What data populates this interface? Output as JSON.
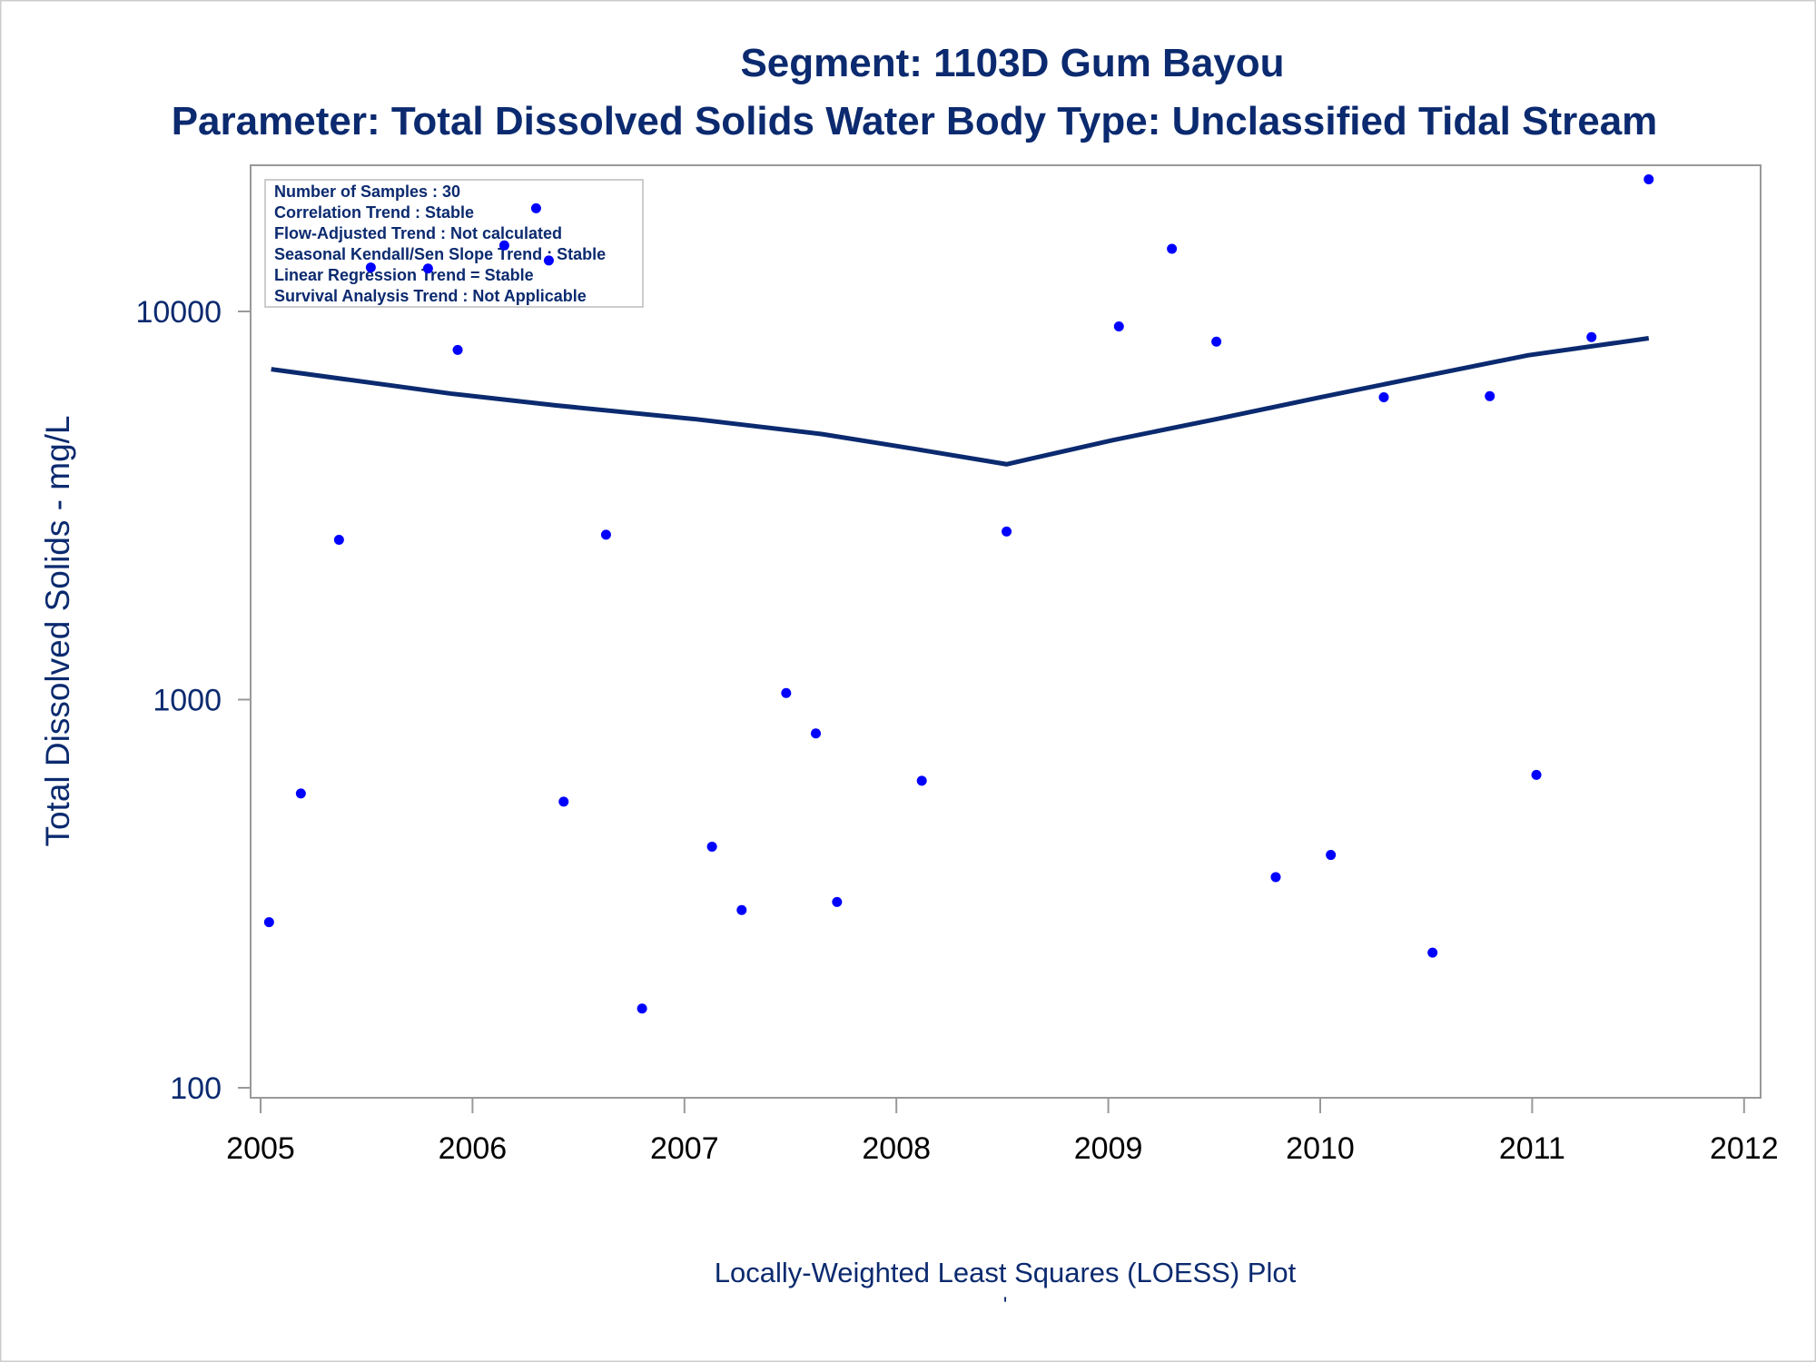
{
  "chart_data": {
    "type": "scatter",
    "title": "Segment: 1103D  Gum Bayou",
    "subtitle": "Parameter: Total Dissolved Solids   Water Body Type: Unclassified Tidal Stream",
    "xlabel": "",
    "ylabel": "Total Dissolved Solids - mg/L",
    "footnote": "Locally-Weighted Least Squares (LOESS) Plot",
    "footnote2": "'",
    "xlim": [
      2005,
      2012
    ],
    "ylim": [
      100,
      25000
    ],
    "yscale": "log",
    "x_ticks": [
      "2005",
      "2006",
      "2007",
      "2008",
      "2009",
      "2010",
      "2011",
      "2012"
    ],
    "y_ticks": [
      "100",
      "1000",
      "10000"
    ],
    "grid": false,
    "legend_placement": "top-left",
    "stats_box": [
      "Number of Samples : 30",
      "Correlation Trend : Stable",
      "Flow-Adjusted Trend : Not calculated",
      "Seasonal Kendall/Sen Slope Trend : Stable",
      "Linear Regression Trend = Stable",
      "Survival Analysis Trend : Not Applicable"
    ],
    "colors": {
      "points": "#0000ff",
      "loess": "#0b2a6f",
      "text": "#0b2a6f",
      "axis": "#999999"
    },
    "series": [
      {
        "name": "Samples",
        "type": "scatter",
        "x": [
          2005.04,
          2005.19,
          2005.37,
          2005.52,
          2005.79,
          2005.93,
          2006.15,
          2006.3,
          2006.36,
          2006.43,
          2006.63,
          2006.8,
          2007.13,
          2007.27,
          2007.48,
          2007.62,
          2007.72,
          2008.12,
          2008.52,
          2009.05,
          2009.3,
          2009.51,
          2009.79,
          2010.05,
          2010.3,
          2010.53,
          2010.8,
          2011.02,
          2011.28,
          2011.55
        ],
        "y": [
          267,
          573,
          2580,
          12980,
          12900,
          7960,
          14800,
          18440,
          13530,
          546,
          2660,
          160,
          418,
          287,
          1040,
          818,
          301,
          618,
          2710,
          9150,
          14500,
          8360,
          349,
          398,
          6010,
          223,
          6050,
          640,
          8590,
          21900
        ]
      },
      {
        "name": "LOESS",
        "type": "line",
        "x": [
          2005.05,
          2005.9,
          2006.39,
          2007.05,
          2007.65,
          2008.09,
          2008.52,
          2009.02,
          2009.51,
          2010.0,
          2010.49,
          2010.98,
          2011.55
        ],
        "y": [
          7100,
          6140,
          5730,
          5280,
          4830,
          4420,
          4040,
          4660,
          5280,
          6010,
          6810,
          7710,
          8530
        ]
      }
    ]
  }
}
